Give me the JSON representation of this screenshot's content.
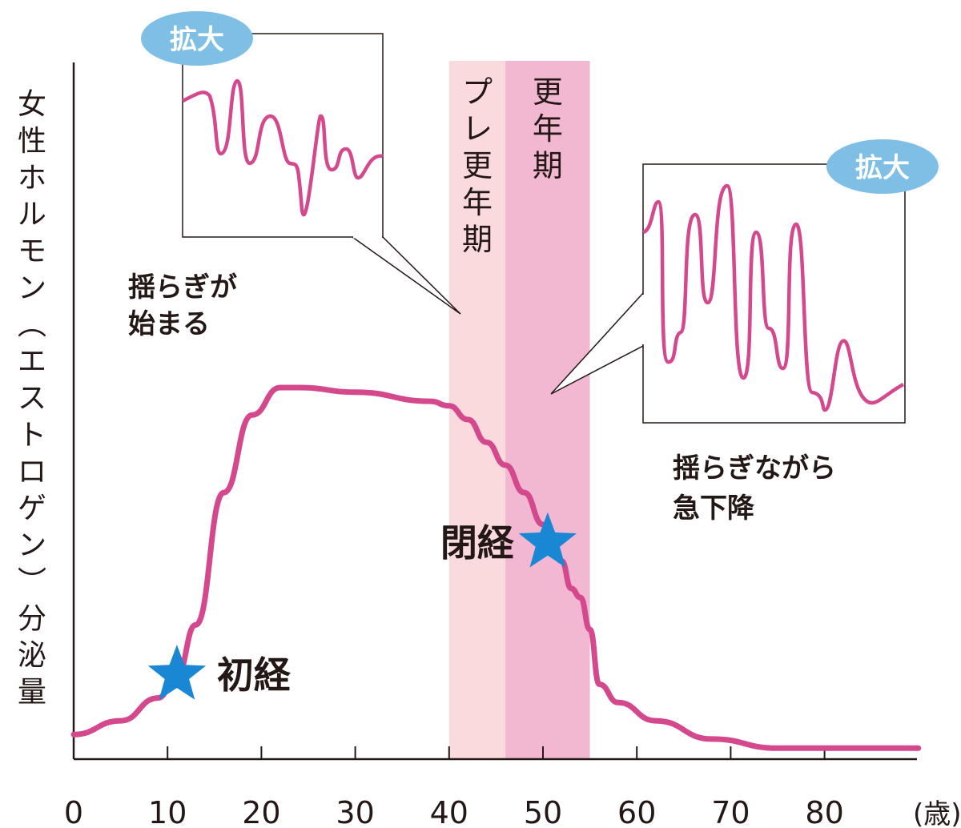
{
  "chart_data": {
    "type": "line",
    "title": "",
    "ylabel": "女性ホルモン（エストロゲン）分泌量",
    "xlabel": "",
    "x_unit": "(歳)",
    "xlim": [
      0,
      90
    ],
    "ylim": [
      0,
      100
    ],
    "x_ticks": [
      0,
      10,
      20,
      30,
      40,
      50,
      60,
      70,
      80
    ],
    "series": [
      {
        "name": "エストロゲン分泌量",
        "color": "#d4488d",
        "x": [
          0,
          5,
          9,
          11,
          13,
          16,
          19,
          22,
          24,
          30,
          38,
          40,
          42,
          44,
          46,
          48,
          50,
          52,
          53,
          54,
          55,
          56,
          58,
          62,
          68,
          75,
          82,
          90
        ],
        "y": [
          4,
          7,
          12,
          17,
          28,
          57,
          74,
          80,
          80,
          79,
          77,
          76,
          73,
          68,
          63,
          57,
          50,
          42,
          36,
          34,
          27,
          15,
          11,
          7,
          3,
          1,
          1,
          1
        ]
      }
    ],
    "bands": [
      {
        "label": "プレ更年期",
        "from": 40,
        "to": 46,
        "color": "#fadadd"
      },
      {
        "label": "更年期",
        "from": 46,
        "to": 55,
        "color": "#f2b7d1"
      }
    ],
    "markers": [
      {
        "label": "初経",
        "x": 11,
        "y": 17,
        "symbol": "star",
        "color": "#1a87d4"
      },
      {
        "label": "閉経",
        "x": 50.5,
        "y": 46,
        "symbol": "star",
        "color": "#1a87d4"
      }
    ],
    "annotations": [
      {
        "text_lines": [
          "揺らぎが",
          "始まる"
        ]
      },
      {
        "text_lines": [
          "揺らぎながら",
          "急下降"
        ]
      }
    ],
    "zoom_insets": [
      {
        "badge": "拡大",
        "target_x": 42
      },
      {
        "badge": "拡大",
        "target_x": 51
      }
    ],
    "colors": {
      "line": "#d4488d",
      "star": "#1a87d4",
      "badge": "#7fbfe6",
      "pre_band": "#fadadd",
      "meno_band": "#f2b7d1",
      "axis": "#231815"
    }
  }
}
